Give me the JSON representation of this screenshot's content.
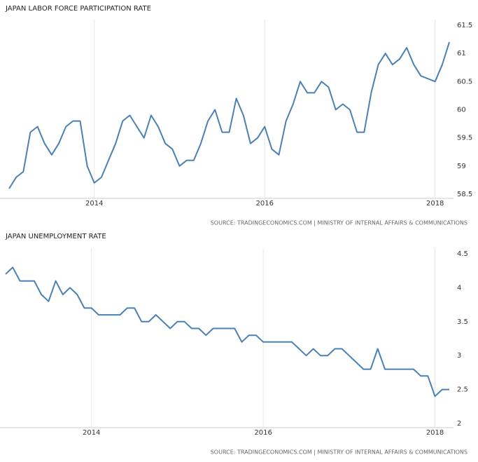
{
  "chart_data": [
    {
      "type": "line",
      "title": "JAPAN LABOR FORCE PARTICIPATION RATE",
      "source": "SOURCE: TRADINGECONOMICS.COM | MINISTRY OF INTERNAL AFFAIRS & COMMUNICATIONS",
      "categories": [
        null,
        null,
        null,
        null,
        null,
        null,
        null,
        null,
        null,
        null,
        null,
        null,
        "2014",
        null,
        null,
        null,
        null,
        null,
        null,
        null,
        null,
        null,
        null,
        null,
        null,
        null,
        null,
        null,
        null,
        null,
        null,
        null,
        null,
        null,
        null,
        null,
        "2016",
        null,
        null,
        null,
        null,
        null,
        null,
        null,
        null,
        null,
        null,
        null,
        null,
        null,
        null,
        null,
        null,
        null,
        null,
        null,
        null,
        null,
        null,
        null,
        "2018",
        null,
        null
      ],
      "series": [
        {
          "name": "Labor Force Participation Rate",
          "color": "#4a80b4",
          "values": [
            58.6,
            58.8,
            58.9,
            59.6,
            59.7,
            59.4,
            59.2,
            59.4,
            59.7,
            59.8,
            59.8,
            59.0,
            58.7,
            58.8,
            59.1,
            59.4,
            59.8,
            59.9,
            59.7,
            59.5,
            59.9,
            59.7,
            59.4,
            59.3,
            59.0,
            59.1,
            59.1,
            59.4,
            59.8,
            60.0,
            59.6,
            59.6,
            60.2,
            59.9,
            59.4,
            59.5,
            59.7,
            59.3,
            59.2,
            59.8,
            60.1,
            60.5,
            60.3,
            60.3,
            60.5,
            60.4,
            60.0,
            60.1,
            60.0,
            59.6,
            59.6,
            60.3,
            60.8,
            61.0,
            60.8,
            60.9,
            61.1,
            60.8,
            60.6,
            60.55,
            60.5,
            60.8,
            61.2
          ]
        }
      ],
      "ylim": [
        58.5,
        61.5
      ],
      "yticks": [
        58.5,
        59,
        59.5,
        60,
        60.5,
        61,
        61.5
      ],
      "grid": true
    },
    {
      "type": "line",
      "title": "JAPAN UNEMPLOYMENT RATE",
      "source": "SOURCE: TRADINGECONOMICS.COM | MINISTRY OF INTERNAL AFFAIRS & COMMUNICATIONS",
      "categories": [
        null,
        null,
        null,
        null,
        null,
        null,
        null,
        null,
        null,
        null,
        null,
        null,
        "2014",
        null,
        null,
        null,
        null,
        null,
        null,
        null,
        null,
        null,
        null,
        null,
        null,
        null,
        null,
        null,
        null,
        null,
        null,
        null,
        null,
        null,
        null,
        null,
        "2016",
        null,
        null,
        null,
        null,
        null,
        null,
        null,
        null,
        null,
        null,
        null,
        null,
        null,
        null,
        null,
        null,
        null,
        null,
        null,
        null,
        null,
        null,
        null,
        "2018",
        null,
        null
      ],
      "series": [
        {
          "name": "Unemployment Rate",
          "color": "#4a80b4",
          "values": [
            4.2,
            4.3,
            4.1,
            4.1,
            4.1,
            3.9,
            3.8,
            4.1,
            3.9,
            4.0,
            3.9,
            3.7,
            3.7,
            3.6,
            3.6,
            3.6,
            3.6,
            3.7,
            3.7,
            3.5,
            3.5,
            3.6,
            3.5,
            3.4,
            3.5,
            3.5,
            3.4,
            3.4,
            3.3,
            3.4,
            3.4,
            3.4,
            3.4,
            3.2,
            3.3,
            3.3,
            3.2,
            3.2,
            3.2,
            3.2,
            3.2,
            3.1,
            3.0,
            3.1,
            3.0,
            3.0,
            3.1,
            3.1,
            3.0,
            2.9,
            2.8,
            2.8,
            3.1,
            2.8,
            2.8,
            2.8,
            2.8,
            2.8,
            2.7,
            2.7,
            2.4,
            2.5,
            2.5
          ]
        }
      ],
      "ylim": [
        2,
        4.5
      ],
      "yticks": [
        2,
        2.5,
        3,
        3.5,
        4,
        4.5
      ],
      "grid": true
    }
  ]
}
